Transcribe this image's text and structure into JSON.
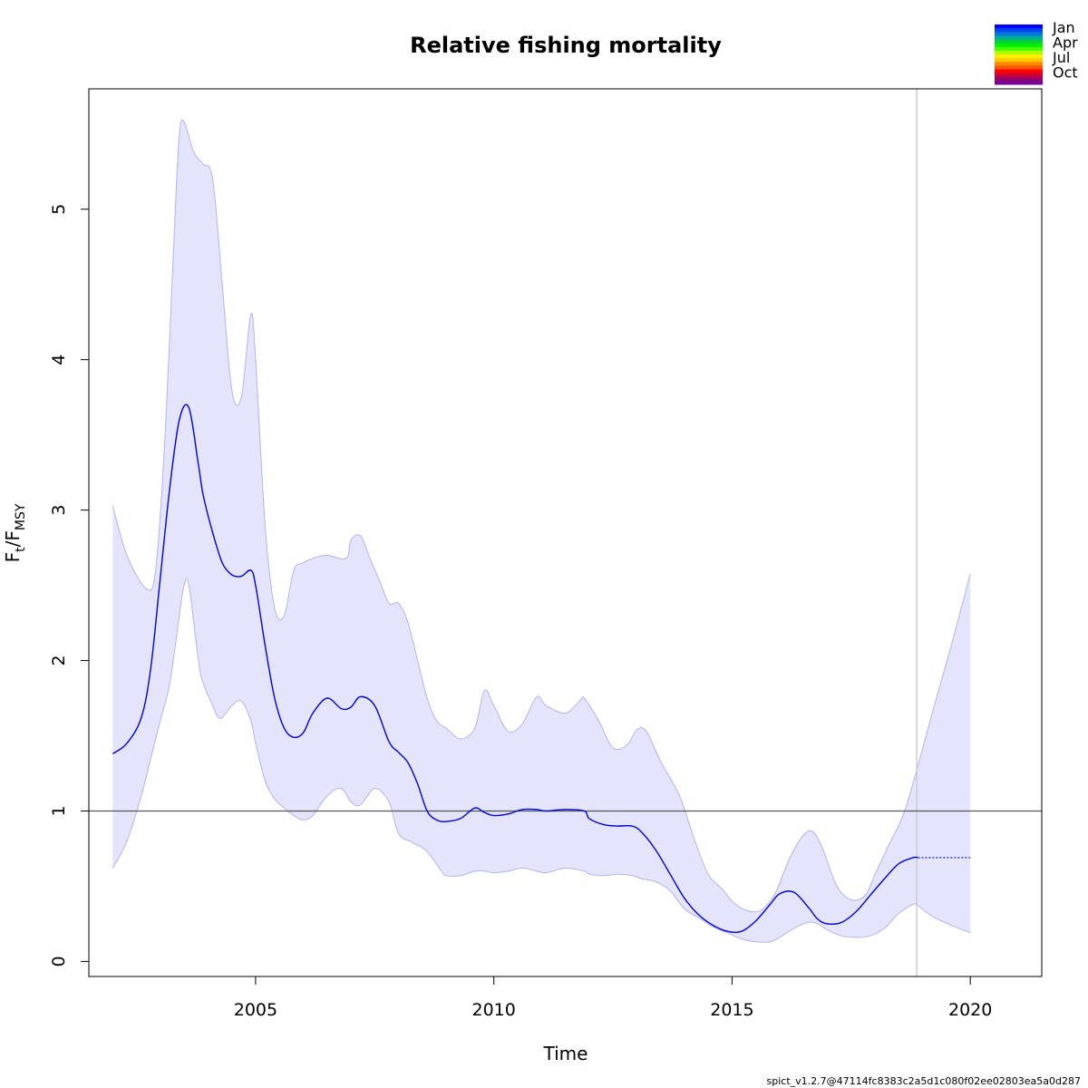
{
  "chart_data": {
    "type": "line",
    "title": "Relative fishing mortality",
    "xlabel": "Time",
    "ylabel": {
      "main": "F",
      "sub1": "t",
      "slash": "/F",
      "sub2": "MSY"
    },
    "xlim": [
      2001.5,
      2021.5
    ],
    "ylim": [
      -0.1,
      5.8
    ],
    "x_ticks": [
      2005,
      2010,
      2015,
      2020
    ],
    "x_tick_labels": [
      "2005",
      "2010",
      "2015",
      "2020"
    ],
    "y_ticks": [
      0,
      1,
      2,
      3,
      4,
      5
    ],
    "y_tick_labels": [
      "0",
      "1",
      "2",
      "3",
      "4",
      "5"
    ],
    "reference_line": 1,
    "data_end_time": 2018.875,
    "colors": {
      "estimate": "#0000dd",
      "ci_fill": "#e4e4fc",
      "ci_edge": "#b3b3f5",
      "reference": "#555555",
      "vertical": "#cccccc"
    },
    "series": [
      {
        "name": "F_t/F_MSY estimate",
        "x": [
          2002.0,
          2002.3,
          2002.6,
          2002.8,
          2003.0,
          2003.2,
          2003.4,
          2003.6,
          2003.8,
          2003.9,
          2004.1,
          2004.3,
          2004.5,
          2004.7,
          2004.9,
          2005.0,
          2005.2,
          2005.4,
          2005.6,
          2005.8,
          2006.0,
          2006.2,
          2006.5,
          2006.8,
          2007.0,
          2007.2,
          2007.5,
          2007.8,
          2008.0,
          2008.2,
          2008.4,
          2008.6,
          2008.8,
          2009.0,
          2009.3,
          2009.6,
          2009.8,
          2010.0,
          2010.3,
          2010.6,
          2010.9,
          2011.1,
          2011.5,
          2011.9,
          2012.0,
          2012.3,
          2012.6,
          2012.9,
          2013.1,
          2013.4,
          2013.7,
          2014.0,
          2014.3,
          2014.6,
          2014.9,
          2015.2,
          2015.5,
          2015.8,
          2016.0,
          2016.3,
          2016.6,
          2016.8,
          2017.0,
          2017.3,
          2017.6,
          2017.9,
          2018.2,
          2018.5,
          2018.8,
          2018.9
        ],
        "values": [
          1.38,
          1.45,
          1.62,
          1.95,
          2.55,
          3.15,
          3.6,
          3.68,
          3.3,
          3.1,
          2.85,
          2.65,
          2.57,
          2.56,
          2.6,
          2.5,
          2.1,
          1.75,
          1.55,
          1.49,
          1.52,
          1.65,
          1.75,
          1.68,
          1.69,
          1.76,
          1.7,
          1.46,
          1.39,
          1.32,
          1.18,
          1.0,
          0.94,
          0.93,
          0.95,
          1.02,
          0.99,
          0.97,
          0.98,
          1.01,
          1.01,
          1.0,
          1.01,
          1.0,
          0.95,
          0.91,
          0.9,
          0.9,
          0.86,
          0.74,
          0.58,
          0.42,
          0.31,
          0.24,
          0.2,
          0.2,
          0.27,
          0.38,
          0.45,
          0.46,
          0.36,
          0.28,
          0.25,
          0.26,
          0.33,
          0.44,
          0.55,
          0.65,
          0.69,
          0.69
        ]
      },
      {
        "name": "Forecast",
        "x": [
          2018.9,
          2020.0
        ],
        "values": [
          0.69,
          0.69
        ]
      },
      {
        "name": "CI upper",
        "x": [
          2002.0,
          2002.3,
          2002.7,
          2002.9,
          2003.1,
          2003.3,
          2003.4,
          2003.5,
          2003.7,
          2003.9,
          2004.1,
          2004.3,
          2004.5,
          2004.7,
          2004.9,
          2005.0,
          2005.2,
          2005.4,
          2005.6,
          2005.8,
          2006.0,
          2006.2,
          2006.5,
          2006.9,
          2007.0,
          2007.2,
          2007.4,
          2007.6,
          2007.8,
          2008.0,
          2008.2,
          2008.4,
          2008.6,
          2008.8,
          2009.0,
          2009.3,
          2009.6,
          2009.8,
          2010.0,
          2010.3,
          2010.6,
          2010.9,
          2011.1,
          2011.5,
          2011.8,
          2011.9,
          2012.2,
          2012.5,
          2012.8,
          2013.0,
          2013.2,
          2013.5,
          2013.9,
          2014.2,
          2014.5,
          2014.8,
          2015.0,
          2015.3,
          2015.6,
          2015.9,
          2016.2,
          2016.5,
          2016.7,
          2016.9,
          2017.2,
          2017.5,
          2017.8,
          2018.0,
          2018.3,
          2018.6,
          2018.9,
          2019.2,
          2019.6,
          2020.0
        ],
        "values": [
          3.03,
          2.7,
          2.48,
          2.6,
          3.5,
          4.9,
          5.5,
          5.58,
          5.38,
          5.3,
          5.2,
          4.5,
          3.8,
          3.75,
          4.3,
          4.0,
          2.9,
          2.35,
          2.3,
          2.6,
          2.65,
          2.68,
          2.7,
          2.68,
          2.8,
          2.83,
          2.68,
          2.53,
          2.38,
          2.38,
          2.25,
          2.0,
          1.75,
          1.6,
          1.55,
          1.48,
          1.55,
          1.8,
          1.7,
          1.53,
          1.58,
          1.76,
          1.7,
          1.65,
          1.73,
          1.75,
          1.6,
          1.42,
          1.44,
          1.54,
          1.53,
          1.33,
          1.1,
          0.82,
          0.58,
          0.48,
          0.4,
          0.34,
          0.34,
          0.45,
          0.68,
          0.84,
          0.86,
          0.75,
          0.5,
          0.41,
          0.44,
          0.58,
          0.78,
          0.98,
          1.3,
          1.65,
          2.1,
          2.58
        ]
      },
      {
        "name": "CI lower",
        "x": [
          2002.0,
          2002.3,
          2002.6,
          2002.8,
          2003.0,
          2003.2,
          2003.4,
          2003.5,
          2003.6,
          2003.8,
          2003.9,
          2004.1,
          2004.2,
          2004.3,
          2004.5,
          2004.7,
          2004.9,
          2005.0,
          2005.2,
          2005.4,
          2005.6,
          2005.8,
          2006.0,
          2006.2,
          2006.5,
          2006.8,
          2007.0,
          2007.2,
          2007.5,
          2007.8,
          2008.0,
          2008.3,
          2008.6,
          2008.9,
          2009.0,
          2009.3,
          2009.6,
          2009.8,
          2010.0,
          2010.3,
          2010.6,
          2010.9,
          2011.1,
          2011.5,
          2011.9,
          2012.0,
          2012.3,
          2012.6,
          2012.9,
          2013.1,
          2013.4,
          2013.7,
          2014.0,
          2014.3,
          2014.6,
          2014.9,
          2015.2,
          2015.5,
          2015.8,
          2016.0,
          2016.3,
          2016.6,
          2016.8,
          2017.0,
          2017.3,
          2017.6,
          2017.9,
          2018.2,
          2018.5,
          2018.8,
          2018.9,
          2019.2,
          2019.6,
          2020.0
        ],
        "values": [
          0.62,
          0.8,
          1.1,
          1.35,
          1.6,
          1.85,
          2.3,
          2.5,
          2.5,
          2.0,
          1.85,
          1.7,
          1.63,
          1.62,
          1.7,
          1.73,
          1.6,
          1.45,
          1.2,
          1.08,
          1.02,
          0.97,
          0.94,
          0.97,
          1.1,
          1.15,
          1.06,
          1.04,
          1.15,
          1.06,
          0.85,
          0.79,
          0.73,
          0.6,
          0.57,
          0.57,
          0.6,
          0.6,
          0.59,
          0.6,
          0.62,
          0.6,
          0.59,
          0.62,
          0.6,
          0.58,
          0.57,
          0.58,
          0.57,
          0.55,
          0.53,
          0.47,
          0.35,
          0.29,
          0.23,
          0.19,
          0.15,
          0.13,
          0.13,
          0.16,
          0.22,
          0.26,
          0.25,
          0.21,
          0.17,
          0.16,
          0.17,
          0.22,
          0.32,
          0.38,
          0.37,
          0.3,
          0.24,
          0.19
        ]
      }
    ],
    "legend": {
      "placement": "top-right",
      "labels": [
        "Jan",
        "Apr",
        "Jul",
        "Oct"
      ],
      "colors": [
        "#0000ff",
        "#0044ee",
        "#0077dd",
        "#00aa99",
        "#00cc44",
        "#00ee00",
        "#44ff00",
        "#aaff00",
        "#ffee00",
        "#ffcc00",
        "#ff8800",
        "#ff5500",
        "#ff0000",
        "#cc0033",
        "#990066",
        "#770099"
      ]
    },
    "footer": "spict_v1.2.7@47114fc8383c2a5d1c080f02ee02803ea5a0d287"
  }
}
